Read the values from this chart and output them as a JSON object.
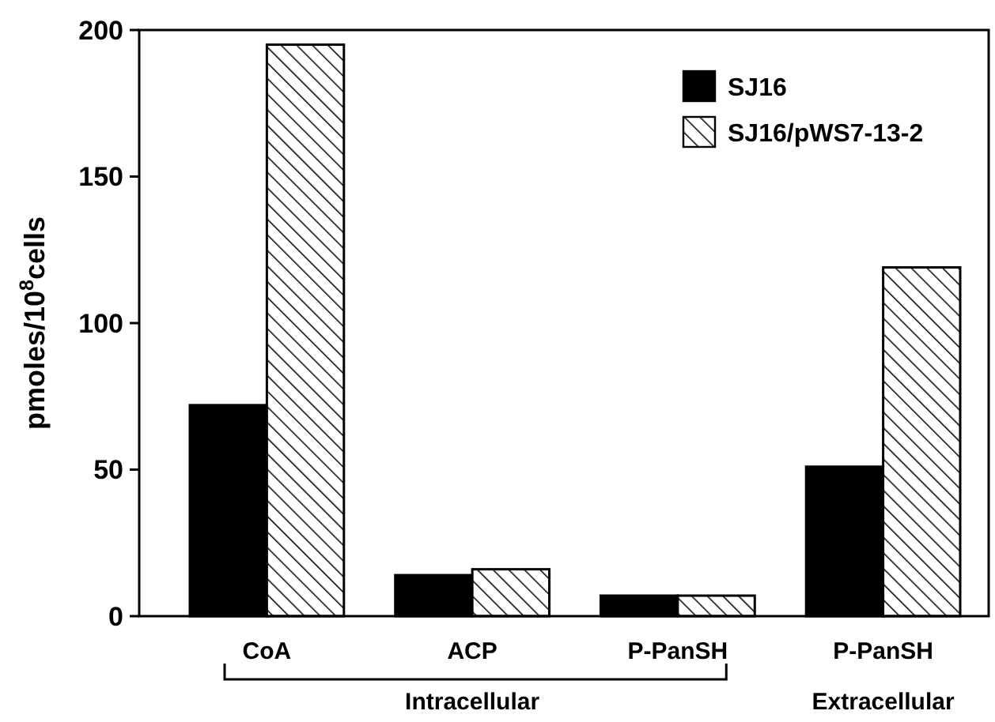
{
  "chart_data": {
    "type": "bar",
    "ylabel": "pmoles/10$^{8}$cells",
    "categories": [
      "CoA",
      "ACP",
      "P-PanSH",
      "P-PanSH"
    ],
    "series": [
      {
        "name": "SJ16",
        "color": "#000000",
        "values": [
          72,
          14,
          7,
          51
        ]
      },
      {
        "name": "SJ16/pWS7-13-2",
        "color": "#000000",
        "values": [
          195,
          16,
          7,
          119
        ]
      }
    ],
    "ylim": [
      0,
      200
    ],
    "yticks": [
      0,
      50,
      100,
      150,
      200
    ],
    "grid": false,
    "legend": "top right",
    "annotations": [
      "Intracellular",
      "Extracellular"
    ]
  }
}
